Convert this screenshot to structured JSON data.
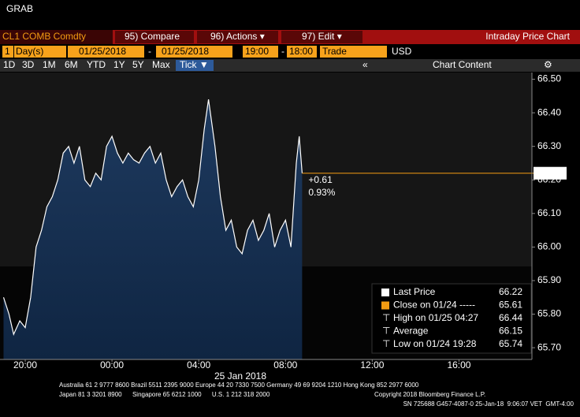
{
  "window_title": "GRAB",
  "toolbar": {
    "ticker": "CL1 COMB Comdty",
    "compare": "95) Compare",
    "actions": "96) Actions ▾",
    "edit": "97) Edit ▾",
    "view": "Intraday Price Chart"
  },
  "settings": {
    "period": "1",
    "unit": "Day(s)",
    "start_date": "01/25/2018",
    "dash1": "-",
    "end_date": "01/25/2018",
    "start_time": "19:00",
    "dash2": "-",
    "end_time": "18:00",
    "field": "Trade",
    "currency": "USD"
  },
  "ranges": [
    "1D",
    "3D",
    "1M",
    "6M",
    "YTD",
    "1Y",
    "5Y",
    "Max"
  ],
  "tick_button": "Tick ▼",
  "collapse": "«",
  "chart_content": "Chart Content",
  "chart_data": {
    "type": "line",
    "x": [
      "19:00",
      "19:15",
      "19:28",
      "19:45",
      "20:00",
      "20:15",
      "20:30",
      "20:45",
      "21:00",
      "21:15",
      "21:30",
      "21:45",
      "22:00",
      "22:15",
      "22:30",
      "22:45",
      "23:00",
      "23:15",
      "23:30",
      "23:45",
      "00:00",
      "00:15",
      "00:30",
      "00:45",
      "01:00",
      "01:15",
      "01:30",
      "01:45",
      "02:00",
      "02:15",
      "02:30",
      "02:45",
      "03:00",
      "03:15",
      "03:30",
      "03:45",
      "04:00",
      "04:15",
      "04:27",
      "04:45",
      "05:00",
      "05:15",
      "05:30",
      "05:45",
      "06:00",
      "06:15",
      "06:30",
      "06:45",
      "07:00",
      "07:15",
      "07:30",
      "07:45",
      "08:00",
      "08:15",
      "08:30",
      "08:38",
      "08:46"
    ],
    "series": [
      {
        "name": "Last Price",
        "color": "#ffffff",
        "values": [
          65.85,
          65.8,
          65.74,
          65.78,
          65.76,
          65.85,
          66.0,
          66.05,
          66.12,
          66.15,
          66.2,
          66.28,
          66.3,
          66.25,
          66.3,
          66.2,
          66.18,
          66.22,
          66.2,
          66.3,
          66.33,
          66.28,
          66.25,
          66.28,
          66.26,
          66.25,
          66.28,
          66.3,
          66.25,
          66.28,
          66.2,
          66.15,
          66.18,
          66.2,
          66.15,
          66.12,
          66.2,
          66.35,
          66.44,
          66.3,
          66.15,
          66.05,
          66.08,
          66.0,
          65.98,
          66.05,
          66.08,
          66.02,
          66.05,
          66.1,
          66.0,
          66.05,
          66.08,
          66.0,
          66.25,
          66.33,
          66.22
        ]
      }
    ],
    "xlim": [
      "19:00",
      "18:00"
    ],
    "xticks": [
      "20:00",
      "00:00",
      "04:00",
      "08:00",
      "12:00",
      "16:00"
    ],
    "x_axis_label": "25 Jan 2018",
    "ylim": [
      65.665,
      66.52
    ],
    "yticks": [
      {
        "value": 65.7,
        "label": "65.70"
      },
      {
        "value": 65.8,
        "label": "65.80"
      },
      {
        "value": 65.9,
        "label": "65.90"
      },
      {
        "value": 66.0,
        "label": "66.00"
      },
      {
        "value": 66.1,
        "label": "66.10"
      },
      {
        "value": 66.2,
        "label": "66.20"
      },
      {
        "value": 66.3,
        "label": "66.30"
      },
      {
        "value": 66.4,
        "label": "66.40"
      },
      {
        "value": 66.5,
        "label": "66.50"
      }
    ],
    "last_price": 66.22,
    "last_price_color": "#f39c12",
    "change": {
      "value": 0.61,
      "label": "+0.61"
    },
    "change_pct": {
      "value": 0.93,
      "label": "0.93%"
    },
    "stats": [
      {
        "label": "Last Price",
        "value": 66.22,
        "color": "#ffffff"
      },
      {
        "label": "Close on 01/24 -----",
        "value": 65.61,
        "color": "#f39c12"
      },
      {
        "label": "High on 01/25 04:27",
        "value": 66.44,
        "color": "#aaaaaa"
      },
      {
        "label": "Average",
        "value": 66.15,
        "color": "#aaaaaa"
      },
      {
        "label": "Low on 01/24 19:28",
        "value": 65.74,
        "color": "#aaaaaa"
      }
    ]
  },
  "footer": {
    "line1": "Australia 61 2 9777 8600 Brazil 5511 2395 9000 Europe 44 20 7330 7500 Germany 49 69 9204 1210 Hong Kong 852 2977 6000",
    "line2": "Japan 81 3 3201 8900      Singapore 65 6212 1000      U.S. 1 212 318 2000",
    "copyright": "Copyright 2018 Bloomberg Finance L.P.",
    "line3": "SN 725688 G457-4087-0 25-Jan-18  9:06:07 VET  GMT-4:00"
  }
}
